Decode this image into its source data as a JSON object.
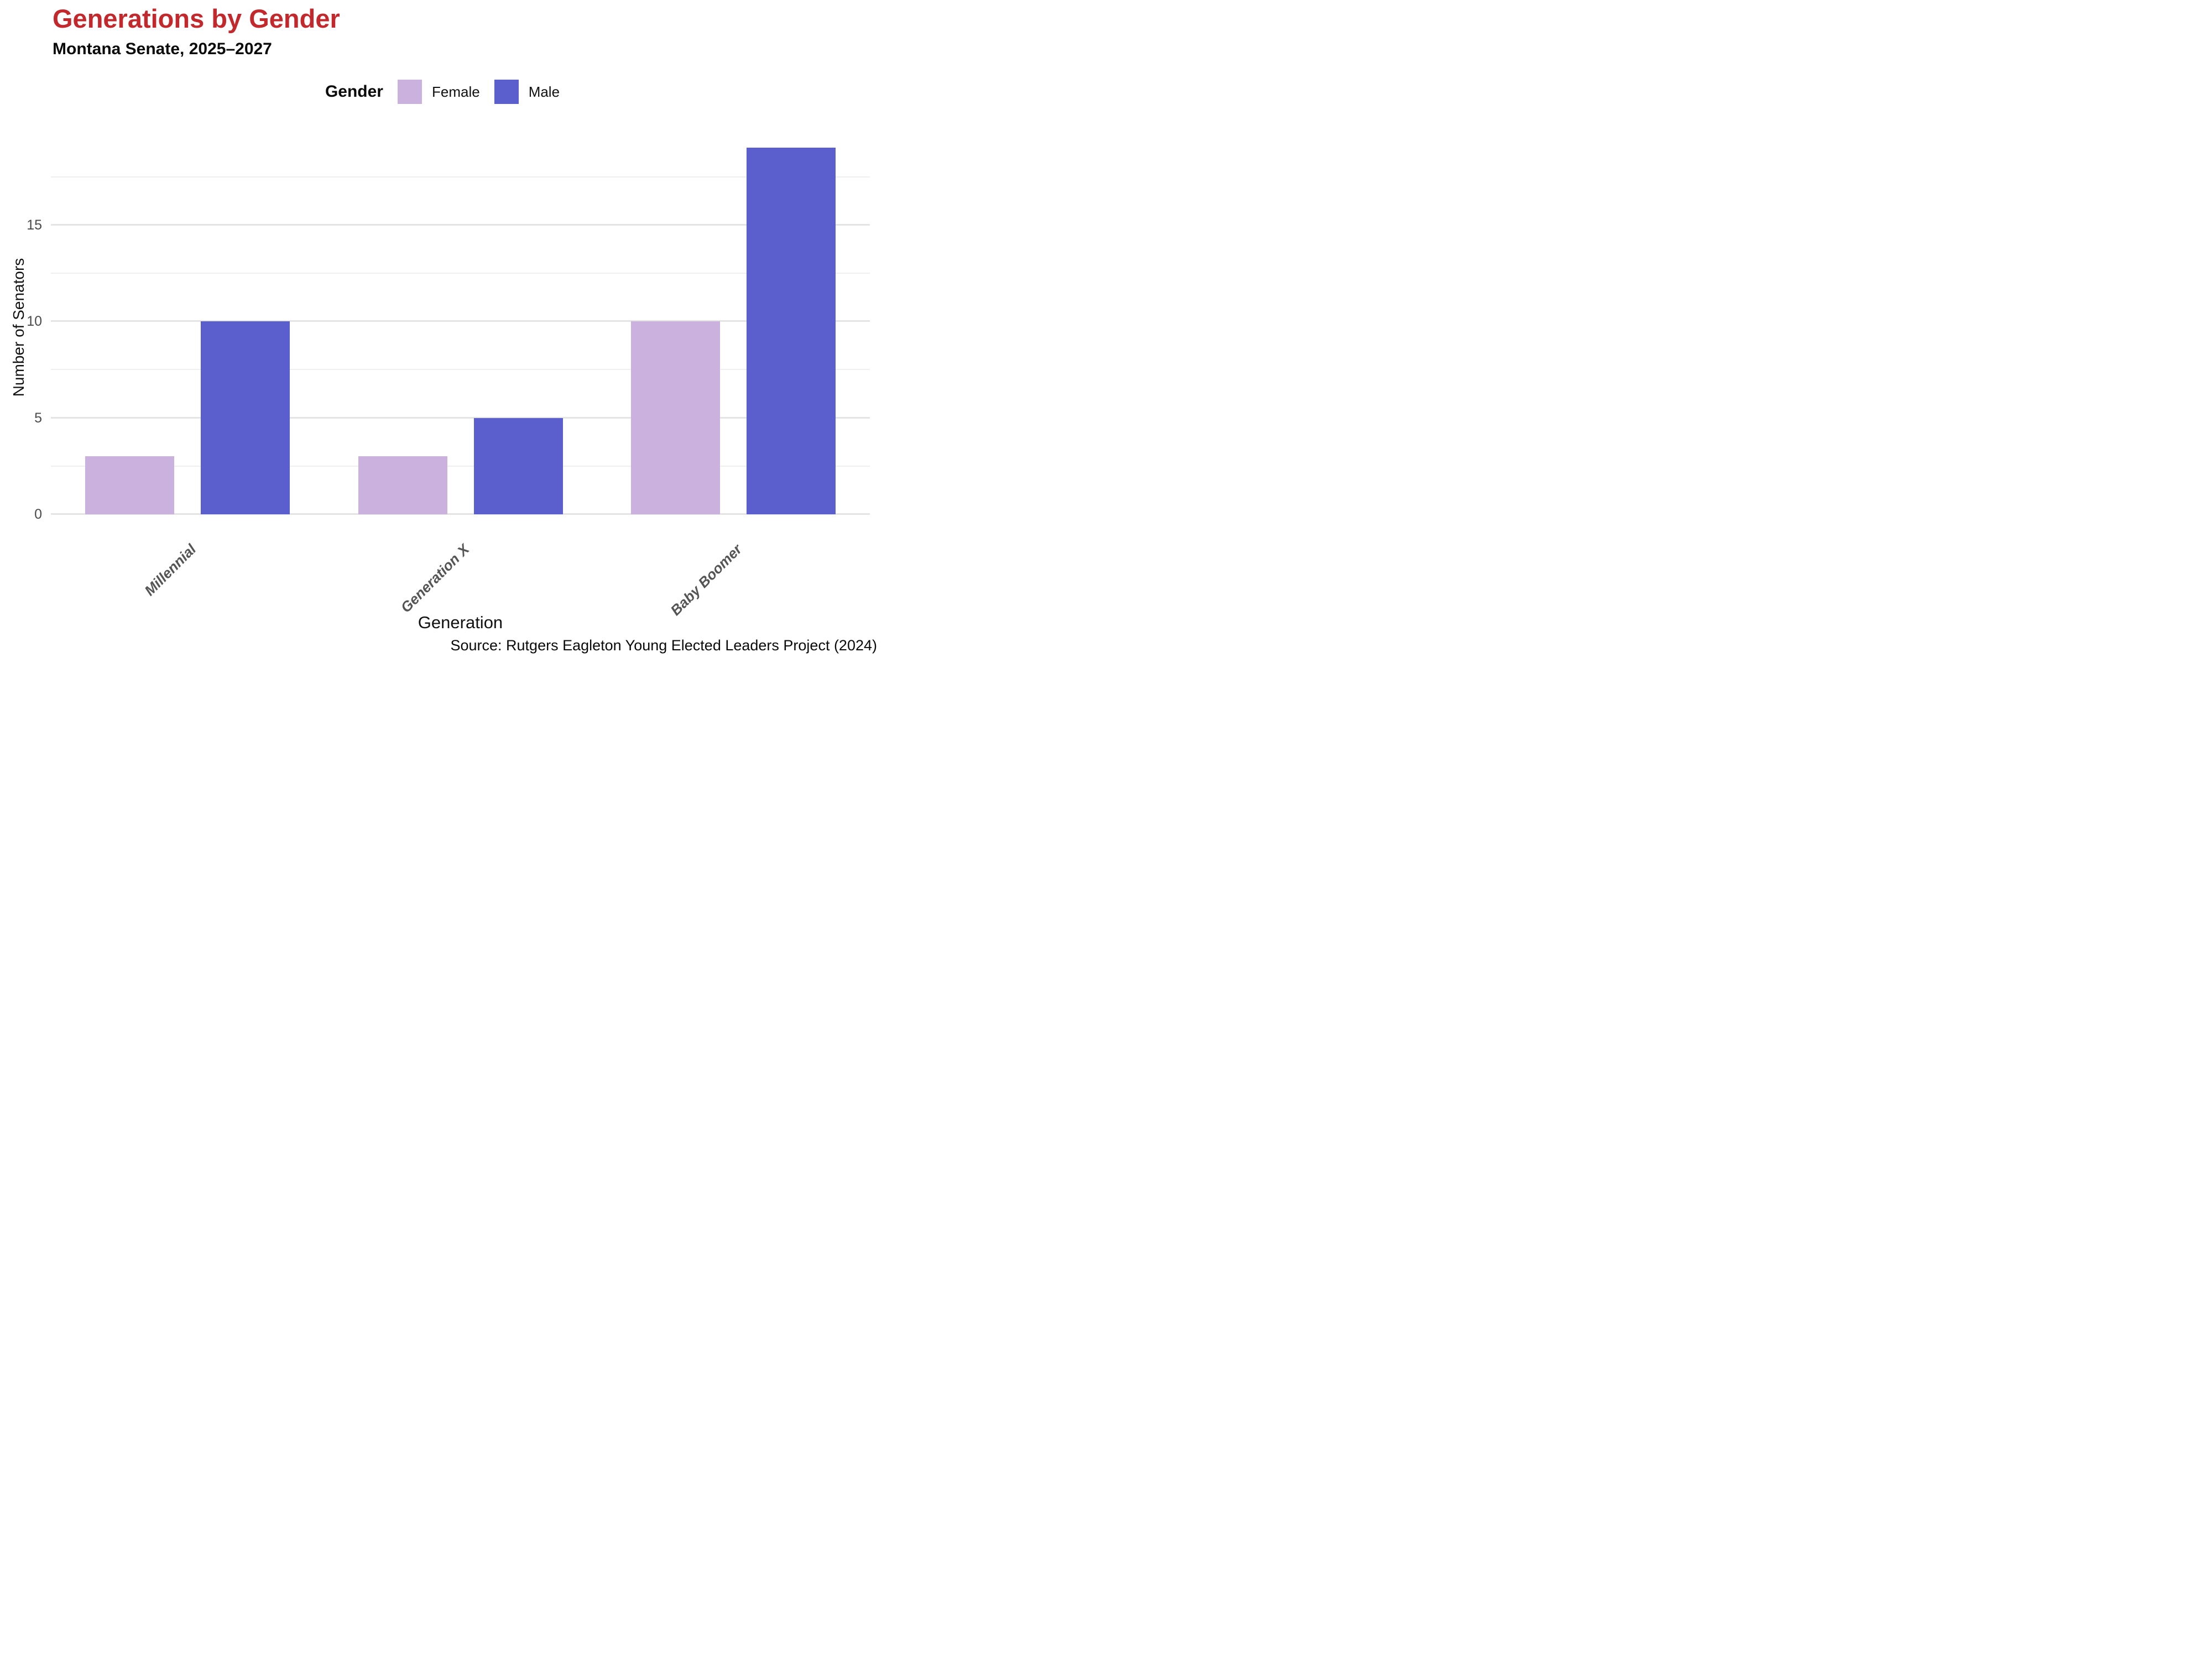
{
  "header": {
    "title": "Generations by Gender",
    "subtitle": "Montana Senate, 2025–2027"
  },
  "legend": {
    "title": "Gender",
    "items": [
      {
        "label": "Female",
        "color": "#CBB2DE"
      },
      {
        "label": "Male",
        "color": "#5B5FCD"
      }
    ]
  },
  "axes": {
    "x_title": "Generation",
    "y_title": "Number of Senators",
    "y_tick_labels": [
      "0",
      "5",
      "10",
      "15"
    ]
  },
  "footer": {
    "source": "Source: Rutgers Eagleton Young Elected Leaders Project (2024)"
  },
  "colors": {
    "title_accent": "#C3292C",
    "female": "#CBB2DE",
    "male": "#5B5FCD",
    "major_gridline": "#e4e4e4",
    "minor_gridline": "#efefef",
    "tick_text": "#4a4a4a",
    "category_text": "#555555"
  },
  "chart_data": {
    "type": "bar",
    "title": "Generations by Gender",
    "subtitle": "Montana Senate, 2025–2027",
    "categories": [
      "Millennial",
      "Generation X",
      "Baby Boomer"
    ],
    "series": [
      {
        "name": "Female",
        "color": "#CBB2DE",
        "values": [
          3,
          3,
          10
        ]
      },
      {
        "name": "Male",
        "color": "#5B5FCD",
        "values": [
          10,
          5,
          19
        ]
      }
    ],
    "xlabel": "Generation",
    "ylabel": "Number of Senators",
    "ylim": [
      0,
      19.5
    ],
    "yticks": [
      0,
      5,
      10,
      15
    ],
    "minor_gridlines": [
      2.5,
      7.5,
      12.5,
      17.5
    ],
    "grid": "horizontal-only",
    "legend_position": "top-center",
    "bar_grouping": "dodged"
  }
}
